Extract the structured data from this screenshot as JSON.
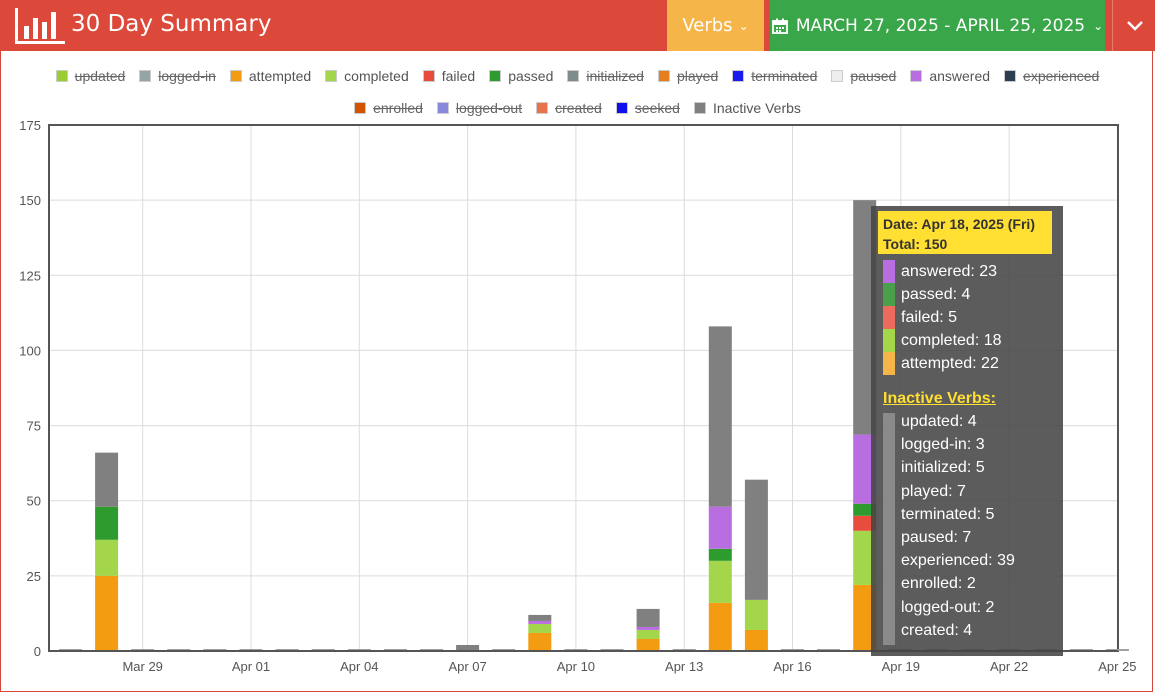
{
  "header": {
    "title": "30 Day Summary",
    "verbs_label": "Verbs",
    "date_range": "MARCH 27, 2025 - APRIL 25, 2025",
    "colors": {
      "header": "#dc493b",
      "verbs": "#f5b548",
      "date": "#3aa64a"
    }
  },
  "legend": {
    "row1": [
      {
        "label": "updated",
        "color": "#9acd32",
        "off": true
      },
      {
        "label": "logged-in",
        "color": "#95a5a6",
        "off": true
      },
      {
        "label": "attempted",
        "color": "#f39c12",
        "off": false
      },
      {
        "label": "completed",
        "color": "#a3d64a",
        "off": false
      },
      {
        "label": "failed",
        "color": "#e74c3c",
        "off": false
      },
      {
        "label": "passed",
        "color": "#2e9b2e",
        "off": false
      },
      {
        "label": "initialized",
        "color": "#7f8c8d",
        "off": true
      },
      {
        "label": "played",
        "color": "#e67e22",
        "off": true
      },
      {
        "label": "terminated",
        "color": "#1a1aee",
        "off": true
      },
      {
        "label": "paused",
        "color": "#eeeeee",
        "off": true
      },
      {
        "label": "answered",
        "color": "#b86ee0",
        "off": false
      },
      {
        "label": "experienced",
        "color": "#2c3e50",
        "off": true
      }
    ],
    "row2": [
      {
        "label": "enrolled",
        "color": "#d35400",
        "off": true
      },
      {
        "label": "logged-out",
        "color": "#8888dd",
        "off": true
      },
      {
        "label": "created",
        "color": "#e8734a",
        "off": true
      },
      {
        "label": "seeked",
        "color": "#1010ee",
        "off": true
      },
      {
        "label": "Inactive Verbs",
        "color": "#808080",
        "off": false
      }
    ]
  },
  "chart_data": {
    "type": "bar",
    "stacked": true,
    "categories": [
      "Mar 27",
      "Mar 28",
      "Mar 29",
      "Mar 30",
      "Mar 31",
      "Apr 01",
      "Apr 02",
      "Apr 03",
      "Apr 04",
      "Apr 05",
      "Apr 06",
      "Apr 07",
      "Apr 08",
      "Apr 09",
      "Apr 10",
      "Apr 11",
      "Apr 12",
      "Apr 13",
      "Apr 14",
      "Apr 15",
      "Apr 16",
      "Apr 17",
      "Apr 18",
      "Apr 19",
      "Apr 20",
      "Apr 21",
      "Apr 22",
      "Apr 23",
      "Apr 24",
      "Apr 25"
    ],
    "tick_labels": [
      "Mar 29",
      "Apr 01",
      "Apr 04",
      "Apr 07",
      "Apr 10",
      "Apr 13",
      "Apr 16",
      "Apr 19",
      "Apr 22",
      "Apr 25"
    ],
    "ylim": [
      0,
      175
    ],
    "yticks": [
      0,
      25,
      50,
      75,
      100,
      125,
      150,
      175
    ],
    "grid": true,
    "series": [
      {
        "name": "attempted",
        "color": "#f39c12",
        "values": [
          0,
          25,
          0,
          0,
          0,
          0,
          0,
          0,
          0,
          0,
          0,
          0,
          0,
          6,
          0,
          0,
          4,
          0,
          16,
          7,
          0,
          0,
          22,
          0,
          0,
          0,
          0,
          0,
          0,
          0
        ]
      },
      {
        "name": "completed",
        "color": "#a3d64a",
        "values": [
          0,
          12,
          0,
          0,
          0,
          0,
          0,
          0,
          0,
          0,
          0,
          0,
          0,
          3,
          0,
          0,
          3,
          0,
          14,
          10,
          0,
          0,
          18,
          0,
          0,
          0,
          0,
          0,
          0,
          0
        ]
      },
      {
        "name": "failed",
        "color": "#e74c3c",
        "values": [
          0,
          0,
          0,
          0,
          0,
          0,
          0,
          0,
          0,
          0,
          0,
          0,
          0,
          0,
          0,
          0,
          0,
          0,
          0,
          0,
          0,
          0,
          5,
          0,
          0,
          0,
          0,
          0,
          0,
          0
        ]
      },
      {
        "name": "passed",
        "color": "#2e9b2e",
        "values": [
          0,
          11,
          0,
          0,
          0,
          0,
          0,
          0,
          0,
          0,
          0,
          0,
          0,
          0,
          0,
          0,
          0,
          0,
          4,
          0,
          0,
          0,
          4,
          0,
          0,
          0,
          0,
          0,
          0,
          0
        ]
      },
      {
        "name": "answered",
        "color": "#b86ee0",
        "values": [
          0,
          0,
          0,
          0,
          0,
          0,
          0,
          0,
          0,
          0,
          0,
          0,
          0,
          1,
          0,
          0,
          1,
          0,
          14,
          0,
          0,
          0,
          23,
          0,
          0,
          0,
          0,
          0,
          0,
          0
        ]
      },
      {
        "name": "Inactive Verbs",
        "color": "#808080",
        "values": [
          0,
          18,
          0,
          0,
          0,
          0,
          0,
          0,
          0,
          0,
          0,
          2,
          0,
          2,
          0,
          0,
          6,
          0,
          60,
          40,
          0,
          0,
          78,
          0,
          0,
          0,
          0,
          0,
          0,
          0
        ]
      }
    ],
    "tooltip": {
      "date_line": "Date: Apr 18, 2025 (Fri)",
      "total_line": "Total: 150",
      "active": [
        {
          "text": "answered: 23",
          "color": "#b86ee0"
        },
        {
          "text": "passed: 4",
          "color": "#4aa04a"
        },
        {
          "text": "failed: 5",
          "color": "#ec6a5e"
        },
        {
          "text": "completed: 18",
          "color": "#a3d64a"
        },
        {
          "text": "attempted: 22",
          "color": "#f5b548"
        }
      ],
      "inactive_title": "Inactive Verbs:",
      "inactive": [
        "updated: 4",
        "logged-in: 3",
        "initialized: 5",
        "played: 7",
        "terminated: 5",
        "paused: 7",
        "experienced: 39",
        "enrolled: 2",
        "logged-out: 2",
        "created: 4"
      ]
    }
  }
}
